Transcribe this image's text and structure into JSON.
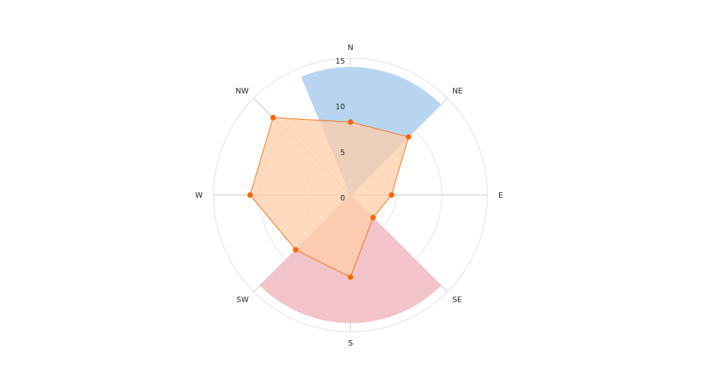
{
  "chart_data": {
    "type": "polar",
    "title": "",
    "directions": [
      "N",
      "NE",
      "E",
      "SE",
      "S",
      "SW",
      "W",
      "NW"
    ],
    "radial_ticks": [
      0,
      5,
      10,
      15
    ],
    "rlim": [
      0,
      15
    ],
    "grid": true,
    "sectors": [
      {
        "from_angle": -22.5,
        "to_angle": 45,
        "value": 14,
        "color": "#b8d4f0"
      },
      {
        "from_angle": 135,
        "to_angle": 225,
        "value": 14,
        "color": "#f2c3c8"
      }
    ],
    "series": [
      {
        "type": "area",
        "values": [
          8,
          9,
          4.5,
          3.5,
          9,
          8.5,
          11,
          12
        ],
        "fill": "#ffcdaa",
        "stroke": "#ff6600"
      }
    ]
  },
  "colors": {
    "grid": "#e3e3e3",
    "spoke": "#c4c4c4",
    "marker": "#ff6600"
  }
}
